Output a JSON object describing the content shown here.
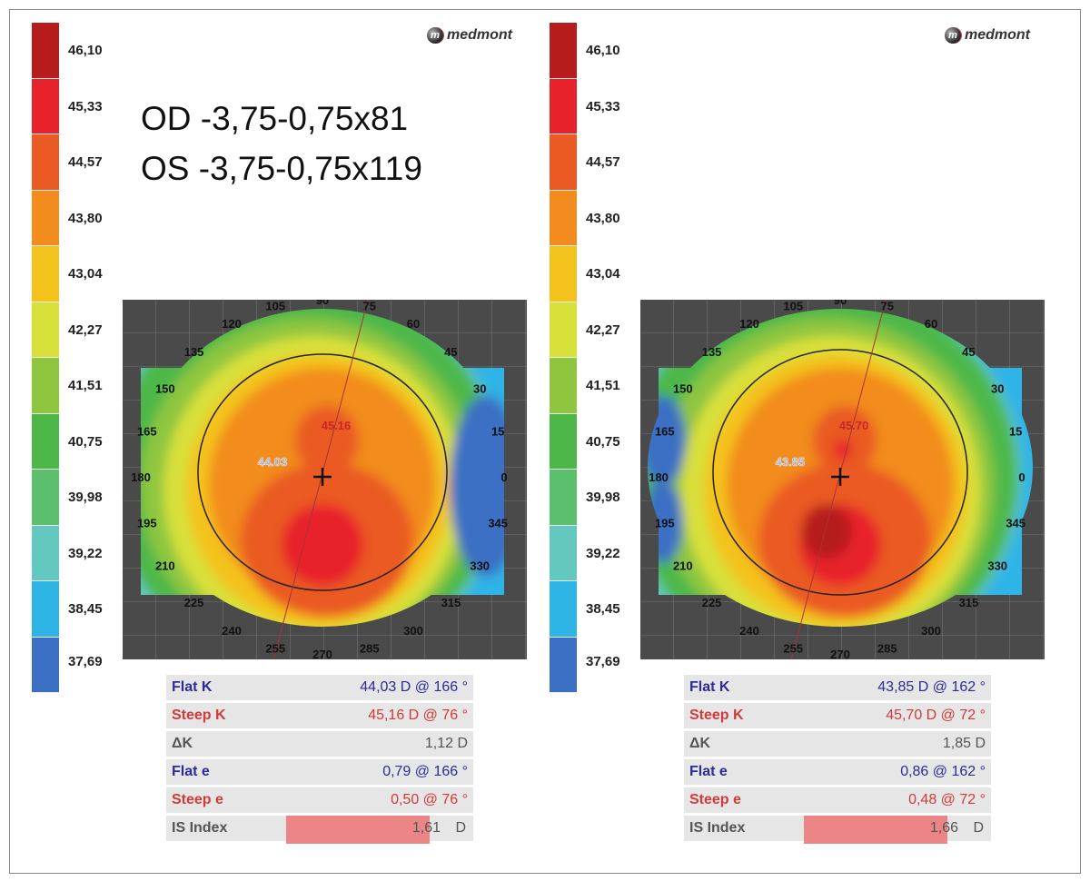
{
  "brand": "medmont",
  "legend": {
    "values": [
      "46,10",
      "45,33",
      "44,57",
      "43,80",
      "43,04",
      "42,27",
      "41,51",
      "40,75",
      "39,98",
      "39,22",
      "38,45",
      "37,69"
    ],
    "colors": [
      "#b71c1c",
      "#e8222a",
      "#ea5a22",
      "#f28c1f",
      "#f4c21c",
      "#d8e03a",
      "#8ec63f",
      "#4db848",
      "#5cbf6e",
      "#62c8c0",
      "#2fb4e6",
      "#3a6fc4"
    ]
  },
  "prescription": {
    "od": "OD -3,75-0,75x81",
    "os": "OS -3,75-0,75x119"
  },
  "angles": [
    "0",
    "15",
    "30",
    "45",
    "60",
    "75",
    "90",
    "105",
    "120",
    "135",
    "150",
    "165",
    "180",
    "195",
    "210",
    "225",
    "240",
    "255",
    "270",
    "285",
    "300",
    "315",
    "330",
    "345"
  ],
  "panels": [
    {
      "map_flat_label": "44.03",
      "map_steep_label": "45.16",
      "rows": [
        {
          "label": "Flat K",
          "value": "44,03 D @ 166 °"
        },
        {
          "label": "Steep K",
          "value": "45,16 D @ 76 °"
        },
        {
          "label": "ΔK",
          "value": "1,12 D"
        },
        {
          "label": "Flat e",
          "value": "0,79 @ 166 °"
        },
        {
          "label": "Steep e",
          "value": "0,50 @ 76 °"
        }
      ],
      "is_index": {
        "label": "IS Index",
        "value": "1,61",
        "unit": "D"
      }
    },
    {
      "map_flat_label": "43.85",
      "map_steep_label": "45.70",
      "rows": [
        {
          "label": "Flat K",
          "value": "43,85 D @ 162 °"
        },
        {
          "label": "Steep K",
          "value": "45,70 D @ 72 °"
        },
        {
          "label": "ΔK",
          "value": "1,85 D"
        },
        {
          "label": "Flat e",
          "value": "0,86 @ 162 °"
        },
        {
          "label": "Steep e",
          "value": "0,48 @ 72 °"
        }
      ],
      "is_index": {
        "label": "IS Index",
        "value": "1,66",
        "unit": "D"
      }
    }
  ]
}
